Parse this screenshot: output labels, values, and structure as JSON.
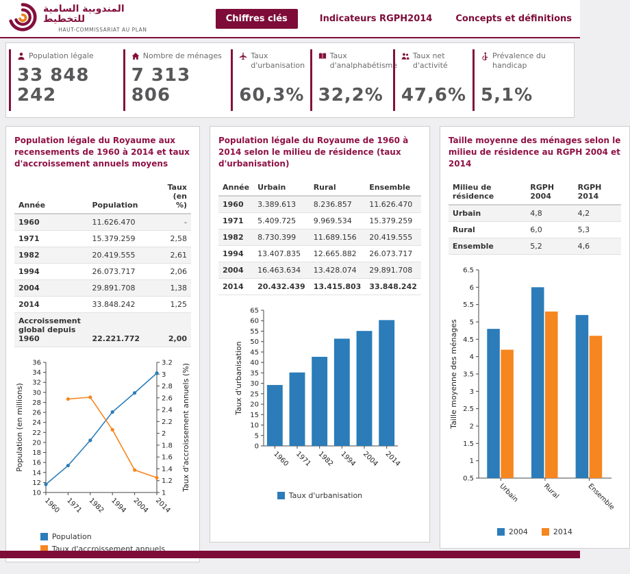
{
  "brand_color": "#83103c",
  "header": {
    "logo": {
      "arabic": "المندوبية السامية للتخطيط",
      "latin": "HAUT-COMMISSARIAT AU PLAN"
    },
    "tabs": [
      {
        "label": "Chiffres clés",
        "active": true
      },
      {
        "label": "Indicateurs RGPH2014",
        "active": false
      },
      {
        "label": "Concepts et définitions",
        "active": false
      }
    ]
  },
  "stats": [
    {
      "icon": "population-icon",
      "label": "Population légale",
      "value": "33 848 242"
    },
    {
      "icon": "households-icon",
      "label": "Nombre de ménages",
      "value": "7 313 806"
    },
    {
      "icon": "urbanisation-icon",
      "label": "Taux d'urbanisation",
      "value": "60,3%"
    },
    {
      "icon": "literacy-icon",
      "label": "Taux d'analphabétisme",
      "value": "32,2%"
    },
    {
      "icon": "activity-icon",
      "label": "Taux net d'activité",
      "value": "47,6%"
    },
    {
      "icon": "handicap-icon",
      "label": "Prévalence du handicap",
      "value": "5,1%"
    }
  ],
  "panels": [
    {
      "title": "Population légale du Royaume aux recensements de 1960 à 2014 et taux d'accroissement annuels moyens",
      "table": {
        "headers": [
          "Année",
          "Population",
          "Taux (en %)"
        ],
        "rows": [
          [
            "1960",
            "11.626.470",
            "-"
          ],
          [
            "1971",
            "15.379.259",
            "2,58"
          ],
          [
            "1982",
            "20.419.555",
            "2,61"
          ],
          [
            "1994",
            "26.073.717",
            "2,06"
          ],
          [
            "2004",
            "29.891.708",
            "1,38"
          ],
          [
            "2014",
            "33.848.242",
            "1,25"
          ],
          [
            "Accroissement global depuis 1960",
            "22.221.772",
            "2,00"
          ]
        ],
        "strong_row": 6
      }
    },
    {
      "title": "Population légale du Royaume de 1960 à 2014 selon le milieu de résidence (taux d'urbanisation)",
      "table": {
        "headers": [
          "Année",
          "Urbain",
          "Rural",
          "Ensemble"
        ],
        "rows": [
          [
            "1960",
            "3.389.613",
            "8.236.857",
            "11.626.470"
          ],
          [
            "1971",
            "5.409.725",
            "9.969.534",
            "15.379.259"
          ],
          [
            "1982",
            "8.730.399",
            "11.689.156",
            "20.419.555"
          ],
          [
            "1994",
            "13.407.835",
            "12.665.882",
            "26.073.717"
          ],
          [
            "2004",
            "16.463.634",
            "13.428.074",
            "29.891.708"
          ],
          [
            "2014",
            "20.432.439",
            "13.415.803",
            "33.848.242"
          ]
        ],
        "strong_row": 5
      }
    },
    {
      "title": "Taille moyenne des ménages selon le milieu de résidence au RGPH 2004 et 2014",
      "table": {
        "headers": [
          "Milieu de résidence",
          "RGPH 2004",
          "RGPH 2014"
        ],
        "rows": [
          [
            "Urbain",
            "4,8",
            "4,2"
          ],
          [
            "Rural",
            "6,0",
            "5,3"
          ],
          [
            "Ensemble",
            "5,2",
            "4,6"
          ]
        ]
      }
    }
  ],
  "chart_data": [
    {
      "type": "line",
      "categories": [
        "1960",
        "1971",
        "1982",
        "1994",
        "2004",
        "2014"
      ],
      "series": [
        {
          "name": "Population",
          "color": "#2b7cb9",
          "axis": "left",
          "values": [
            11.626,
            15.379,
            20.42,
            26.074,
            29.892,
            33.848
          ]
        },
        {
          "name": "Taux d'accroissement annuels",
          "color": "#f6861f",
          "axis": "right",
          "values": [
            null,
            2.58,
            2.61,
            2.06,
            1.38,
            1.25
          ]
        }
      ],
      "left_axis": {
        "label": "Population (en millions)",
        "min": 10,
        "max": 36,
        "step": 2
      },
      "right_axis": {
        "label": "Taux d'accroissement annuels (%)",
        "min": 1,
        "max": 3.2,
        "step": 0.2
      },
      "grid": false,
      "legend_position": "bottom"
    },
    {
      "type": "bar",
      "categories": [
        "1960",
        "1971",
        "1982",
        "1994",
        "2004",
        "2014"
      ],
      "series": [
        {
          "name": "Taux d'urbanisation",
          "color": "#2b7cb9",
          "values": [
            29.2,
            35.2,
            42.7,
            51.4,
            55.1,
            60.3
          ]
        }
      ],
      "y_axis": {
        "label": "Taux d'urbanisation",
        "min": 0,
        "max": 65,
        "step": 5
      },
      "grid": false,
      "legend_position": "bottom"
    },
    {
      "type": "bar",
      "categories": [
        "Urbain",
        "Rural",
        "Ensemble"
      ],
      "series": [
        {
          "name": "2004",
          "color": "#2b7cb9",
          "values": [
            4.8,
            6.0,
            5.2
          ]
        },
        {
          "name": "2014",
          "color": "#f6861f",
          "values": [
            4.2,
            5.3,
            4.6
          ]
        }
      ],
      "y_axis": {
        "label": "Taille moyenne des ménages",
        "min": 0.5,
        "max": 6.5,
        "step": 0.5
      },
      "grid": false,
      "legend_position": "bottom"
    }
  ]
}
